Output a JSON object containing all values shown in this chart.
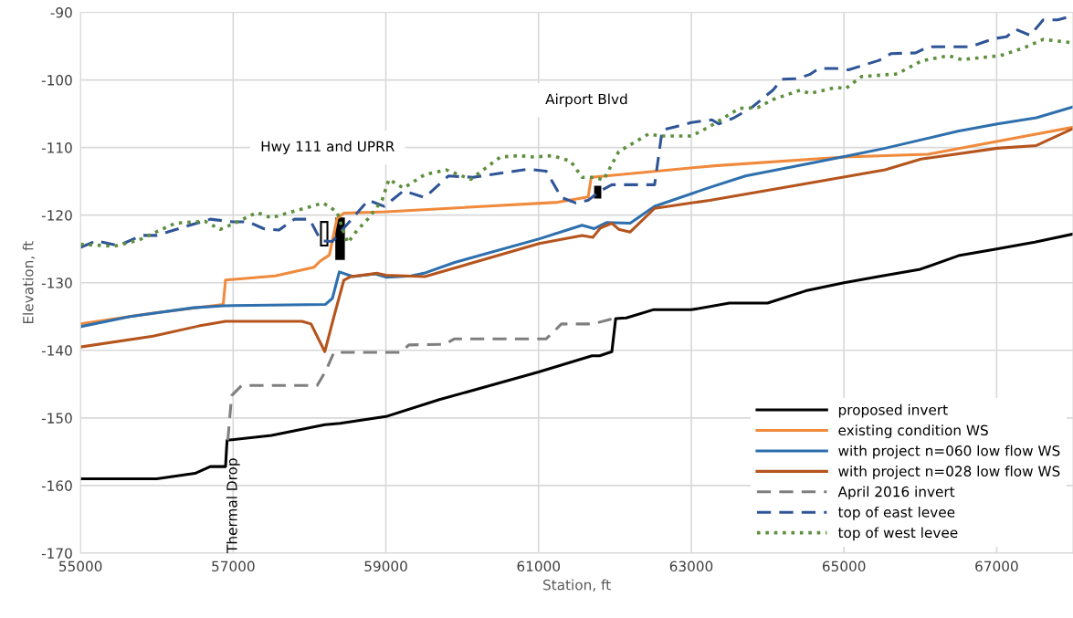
{
  "chart_data": {
    "type": "line",
    "xlabel": "Station, ft",
    "ylabel": "Elevation, ft",
    "xlim": [
      55000,
      68000
    ],
    "xticks": [
      55000,
      57000,
      59000,
      61000,
      63000,
      65000,
      67000
    ],
    "ylim": [
      -170,
      -90
    ],
    "yticks": [
      -170,
      -160,
      -150,
      -140,
      -130,
      -120,
      -110,
      -100,
      -90
    ],
    "grid": true,
    "legend": "bottom right",
    "marker": "none",
    "annotations": [
      "Hwy 111 and UPRR",
      "Airport Blvd",
      "Thermal Drop"
    ],
    "series": [
      {
        "name": "proposed invert",
        "color": "#000000",
        "line_style": "solid",
        "x": [
          55000,
          56000,
          56500,
          56700,
          56900,
          56920,
          57500,
          58200,
          58400,
          59000,
          59700,
          61000,
          61700,
          61800,
          61960,
          62010,
          62150,
          62500,
          63000,
          63500,
          64000,
          64500,
          65000,
          65500,
          66000,
          66500,
          67000,
          67500,
          68000
        ],
        "values": [
          -159,
          -159,
          -158.2,
          -157.2,
          -157.2,
          -153.3,
          -152.6,
          -151,
          -150.8,
          -149.8,
          -147.3,
          -143.2,
          -140.8,
          -140.8,
          -140.2,
          -135.3,
          -135.2,
          -134,
          -134,
          -133,
          -133,
          -131.2,
          -130,
          -129,
          -128,
          -126,
          -125,
          -124,
          -122.8
        ]
      },
      {
        "name": "existing condition WS",
        "color": "#f08a3c",
        "line_style": "solid",
        "x": [
          55000,
          55950,
          56870,
          56900,
          57550,
          58060,
          58140,
          58260,
          58360,
          58450,
          59000,
          61250,
          61650,
          61690,
          63300,
          65000,
          66100,
          67000,
          68000
        ],
        "values": [
          -136.1,
          -134.5,
          -133.2,
          -129.6,
          -129,
          -127.7,
          -126.8,
          -125.9,
          -120.5,
          -119.7,
          -119.5,
          -118.1,
          -117.3,
          -114.4,
          -112.7,
          -111.4,
          -111,
          -109.1,
          -107
        ]
      },
      {
        "name": "with project n=060 low flow WS",
        "color": "#2e6fad",
        "line_style": "solid",
        "x": [
          55000,
          55650,
          56480,
          56870,
          58210,
          58300,
          58390,
          58570,
          58860,
          59010,
          59330,
          59500,
          59900,
          61010,
          61570,
          61730,
          61890,
          62200,
          62520,
          63240,
          63710,
          64430,
          65020,
          65540,
          66490,
          67010,
          67520,
          68000
        ],
        "values": [
          -136.5,
          -135,
          -133.7,
          -133.4,
          -133.2,
          -132.3,
          -128.4,
          -129.1,
          -128.7,
          -129.2,
          -129,
          -128.6,
          -127,
          -123.5,
          -121.5,
          -122,
          -121.1,
          -121.2,
          -118.7,
          -115.9,
          -114.2,
          -112.6,
          -111.3,
          -110.1,
          -107.6,
          -106.5,
          -105.6,
          -104
        ]
      },
      {
        "name": "with project n=028 low flow WS",
        "color": "#b5541c",
        "line_style": "solid",
        "x": [
          55000,
          55950,
          56550,
          56900,
          57900,
          58020,
          58200,
          58320,
          58450,
          58540,
          58890,
          59000,
          59510,
          61010,
          61570,
          61710,
          61810,
          61960,
          62050,
          62200,
          62520,
          63240,
          64430,
          65540,
          66010,
          67010,
          67520,
          68000
        ],
        "values": [
          -139.5,
          -137.9,
          -136.4,
          -135.7,
          -135.7,
          -136.1,
          -140.2,
          -135,
          -129.6,
          -129.1,
          -128.6,
          -128.9,
          -129.1,
          -124.2,
          -123,
          -123.3,
          -121.9,
          -121.2,
          -122.1,
          -122.5,
          -119,
          -117.8,
          -115.5,
          -113.3,
          -111.7,
          -110.1,
          -109.7,
          -107.2
        ]
      },
      {
        "name": "April 2016 invert",
        "color": "#7f7f7f",
        "line_style": "dashed",
        "x": [
          56930,
          56980,
          57110,
          58100,
          58210,
          58320,
          59200,
          59300,
          59770,
          59900,
          61100,
          61300,
          61710,
          62010
        ],
        "values": [
          -153.3,
          -146.7,
          -145.2,
          -145.2,
          -143.1,
          -140.3,
          -140.3,
          -139.2,
          -139.1,
          -138.3,
          -138.3,
          -136.1,
          -136.1,
          -135.2
        ]
      },
      {
        "name": "top of east levee",
        "color": "#2f5597",
        "line_style": "dashed",
        "x": [
          55000,
          55200,
          55500,
          55800,
          56000,
          56400,
          56700,
          57000,
          57200,
          57400,
          57600,
          57800,
          58000,
          58150,
          58300,
          58450,
          58770,
          58980,
          59230,
          59510,
          59820,
          60140,
          60380,
          60860,
          61100,
          61300,
          61490,
          61650,
          61810,
          61960,
          62520,
          62620,
          62800,
          63000,
          63270,
          63360,
          63560,
          63800,
          64070,
          64190,
          64390,
          64550,
          64670,
          64900,
          65060,
          65460,
          65620,
          65940,
          66100,
          66650,
          66960,
          67130,
          67250,
          67440,
          67610,
          67800,
          68000
        ],
        "values": [
          -124.8,
          -123.8,
          -124.5,
          -123,
          -123,
          -121.6,
          -120.6,
          -121,
          -121,
          -122,
          -122.2,
          -120.6,
          -120.6,
          -123.8,
          -123.9,
          -121.9,
          -117.8,
          -118.7,
          -116.4,
          -117.4,
          -114.2,
          -114.4,
          -114,
          -113.2,
          -113.5,
          -117.4,
          -118.2,
          -117.8,
          -116.4,
          -115.5,
          -115.5,
          -107.4,
          -106.9,
          -106.3,
          -105.9,
          -106.5,
          -105.6,
          -104,
          -101.5,
          -99.9,
          -99.8,
          -99.2,
          -98.3,
          -98.3,
          -98.5,
          -97.1,
          -96.1,
          -96,
          -95.1,
          -95.1,
          -93.9,
          -93.6,
          -92.5,
          -93.4,
          -91.1,
          -91.1,
          -90.5
        ]
      },
      {
        "name": "top of west levee",
        "color": "#5e8f3e",
        "line_style": "dotted",
        "x": [
          55000,
          55440,
          55760,
          56240,
          56630,
          56830,
          57020,
          57310,
          57500,
          57740,
          58180,
          58360,
          58420,
          58500,
          58620,
          58770,
          58950,
          59040,
          59230,
          59510,
          59790,
          60110,
          60500,
          60740,
          60940,
          61180,
          61420,
          61570,
          61730,
          61850,
          62050,
          62290,
          62440,
          62610,
          63000,
          63240,
          63630,
          63870,
          64070,
          64430,
          64550,
          64900,
          65020,
          65230,
          65700,
          66010,
          66370,
          66540,
          67050,
          67370,
          67610,
          68000
        ],
        "values": [
          -124.3,
          -124.6,
          -123.7,
          -121.2,
          -120.9,
          -122.1,
          -121.2,
          -119.6,
          -120.4,
          -119.6,
          -118.2,
          -119.5,
          -121.6,
          -124.1,
          -122.3,
          -120.5,
          -117.8,
          -114.7,
          -116,
          -114,
          -113.3,
          -114.7,
          -111.4,
          -111.2,
          -111.4,
          -111.2,
          -112,
          -114.4,
          -114.4,
          -114.8,
          -110.6,
          -109,
          -108,
          -108.3,
          -108.3,
          -106.9,
          -104.2,
          -104.1,
          -102.9,
          -101.5,
          -102,
          -101.1,
          -101.3,
          -99.5,
          -99.1,
          -97.2,
          -96.4,
          -97,
          -96.4,
          -95.2,
          -94,
          -94.5
        ]
      }
    ]
  }
}
